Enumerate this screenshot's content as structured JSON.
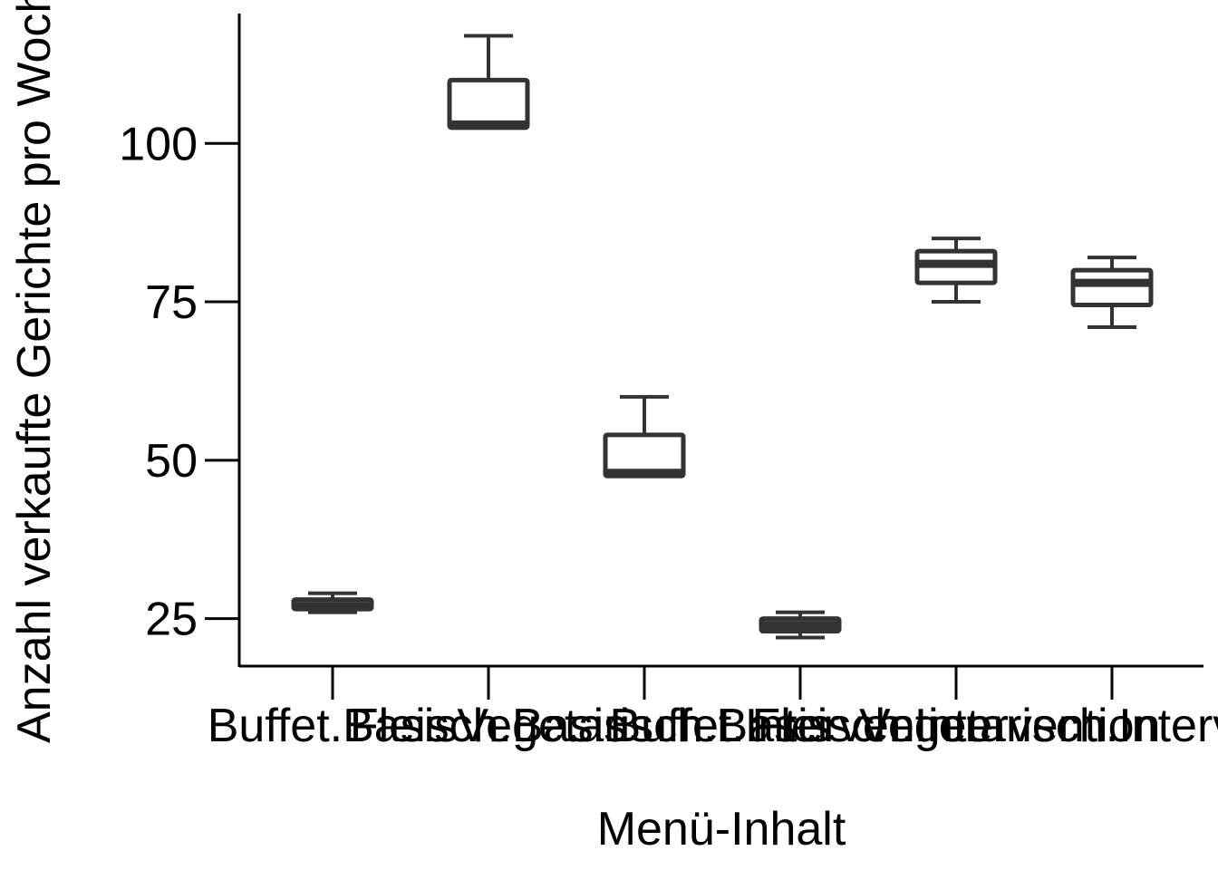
{
  "chart_data": {
    "type": "boxplot",
    "xlabel": "Menü-Inhalt",
    "ylabel": "Anzahl verkaufte Gerichte pro Woche",
    "categories": [
      "Buffet.Basis",
      "Fleisch.Basis",
      "Vegetarisch.Basis",
      "Buffet.Intervention",
      "Fleisch.Intervention",
      "Vegetarisch.Intervention"
    ],
    "ylim": [
      17.5,
      120.5
    ],
    "yticks": [
      25,
      50,
      75,
      100
    ],
    "grid": false,
    "legend": "none",
    "boxes": [
      {
        "category": "Buffet.Basis",
        "whisker_low": 26,
        "q1": 26.5,
        "median": 27,
        "q3": 28,
        "whisker_high": 29
      },
      {
        "category": "Fleisch.Basis",
        "whisker_low": 102.5,
        "q1": 102.5,
        "median": 103,
        "q3": 110,
        "whisker_high": 117
      },
      {
        "category": "Vegetarisch.Basis",
        "whisker_low": 47.5,
        "q1": 47.5,
        "median": 48,
        "q3": 54,
        "whisker_high": 60
      },
      {
        "category": "Buffet.Intervention",
        "whisker_low": 22,
        "q1": 23,
        "median": 24,
        "q3": 25,
        "whisker_high": 26
      },
      {
        "category": "Fleisch.Intervention",
        "whisker_low": 75,
        "q1": 78,
        "median": 81,
        "q3": 83,
        "whisker_high": 85
      },
      {
        "category": "Vegetarisch.Intervention",
        "whisker_low": 71,
        "q1": 74.5,
        "median": 78,
        "q3": 80,
        "whisker_high": 82
      }
    ],
    "box_color": "#333333",
    "axis_color": "#000000"
  }
}
